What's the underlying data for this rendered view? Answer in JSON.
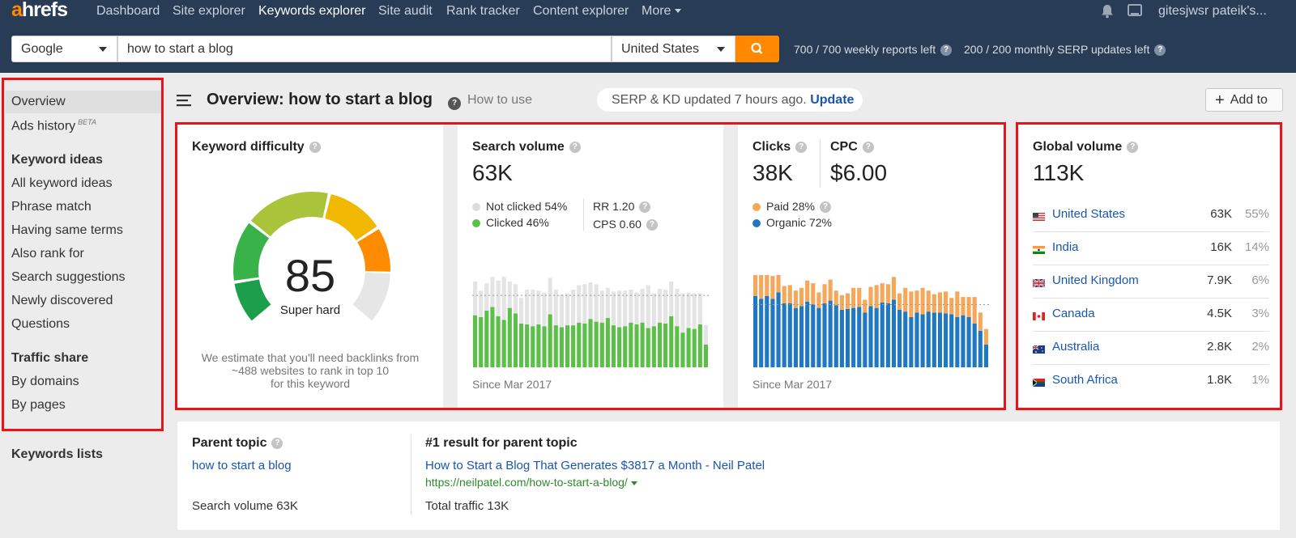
{
  "nav": {
    "logo_a": "a",
    "logo_rest": "hrefs",
    "items": [
      "Dashboard",
      "Site explorer",
      "Keywords explorer",
      "Site audit",
      "Rank tracker",
      "Content explorer",
      "More"
    ],
    "user": "gitesjwsr pateik's..."
  },
  "search": {
    "engine": "Google",
    "query": "how to start a blog",
    "country": "United States",
    "weekly_reports": "700 / 700 weekly reports left",
    "serp_updates": "200 / 200 monthly SERP updates left"
  },
  "sidebar": {
    "overview": "Overview",
    "ads_history": "Ads history",
    "beta": "BETA",
    "keyword_ideas_head": "Keyword ideas",
    "keyword_ideas": [
      "All keyword ideas",
      "Phrase match",
      "Having same terms",
      "Also rank for",
      "Search suggestions",
      "Newly discovered",
      "Questions"
    ],
    "traffic_share_head": "Traffic share",
    "traffic_share": [
      "By domains",
      "By pages"
    ],
    "keywords_lists": "Keywords lists"
  },
  "header": {
    "title": "Overview: how to start a blog",
    "how_to_use": "How to use",
    "serp_status": "SERP & KD updated 7 hours ago.",
    "update": "Update",
    "add_to": "Add to"
  },
  "kd": {
    "title": "Keyword difficulty",
    "value": "85",
    "score": 85,
    "label": "Super hard",
    "note1": "We estimate that you'll need backlinks from",
    "note2": "~488 websites to rank in top 10",
    "note3": "for this keyword"
  },
  "sv": {
    "title": "Search volume",
    "value": "63K",
    "not_clicked": "Not clicked 54%",
    "clicked": "Clicked 46%",
    "rr": "RR 1.20",
    "cps": "CPS 0.60",
    "since": "Since Mar 2017"
  },
  "clicks": {
    "title": "Clicks",
    "value": "38K",
    "cpc_title": "CPC",
    "cpc_value": "$6.00",
    "paid": "Paid 28%",
    "organic": "Organic 72%",
    "since": "Since Mar 2017"
  },
  "global": {
    "title": "Global volume",
    "value": "113K",
    "rows": [
      {
        "country": "United States",
        "volume": "63K",
        "pct": "55%"
      },
      {
        "country": "India",
        "volume": "16K",
        "pct": "14%"
      },
      {
        "country": "United Kingdom",
        "volume": "7.9K",
        "pct": "6%"
      },
      {
        "country": "Canada",
        "volume": "4.5K",
        "pct": "3%"
      },
      {
        "country": "Australia",
        "volume": "2.8K",
        "pct": "2%"
      },
      {
        "country": "South Africa",
        "volume": "1.8K",
        "pct": "1%"
      }
    ]
  },
  "parent": {
    "title": "Parent topic",
    "topic": "how to start a blog",
    "volume": "Search volume 63K",
    "result_title": "#1 result for parent topic",
    "result_link": "How to Start a Blog That Generates $3817 a Month - Neil Patel",
    "result_url": "https://neilpatel.com/how-to-start-a-blog/",
    "traffic": "Total traffic 13K"
  },
  "colors": {
    "nav_bg": "#283c55",
    "accent": "#ff8800",
    "link": "#1a55b0",
    "clicked_green": "#5cbf4a",
    "not_clicked_gray": "#e4e4e4",
    "paid_orange": "#f5a75a",
    "organic_blue": "#1f78c1"
  },
  "chart_data": [
    {
      "type": "bar",
      "stacked": true,
      "series": [
        {
          "name": "Clicked",
          "values": [
            0.57,
            0.55,
            0.62,
            0.66,
            0.56,
            0.52,
            0.65,
            0.59,
            0.48,
            0.47,
            0.45,
            0.47,
            0.45,
            0.58,
            0.46,
            0.44,
            0.46,
            0.46,
            0.49,
            0.48,
            0.53,
            0.5,
            0.49,
            0.54,
            0.46,
            0.44,
            0.45,
            0.49,
            0.47,
            0.49,
            0.43,
            0.45,
            0.49,
            0.48,
            0.56,
            0.45,
            0.38,
            0.43,
            0.42,
            0.47,
            0.25
          ]
        },
        {
          "name": "Not clicked",
          "values": [
            0.37,
            0.29,
            0.3,
            0.33,
            0.39,
            0.47,
            0.29,
            0.32,
            0.28,
            0.38,
            0.4,
            0.37,
            0.37,
            0.4,
            0.39,
            0.36,
            0.35,
            0.39,
            0.41,
            0.43,
            0.4,
            0.41,
            0.35,
            0.33,
            0.37,
            0.4,
            0.39,
            0.36,
            0.35,
            0.37,
            0.47,
            0.36,
            0.37,
            0.37,
            0.38,
            0.41,
            0.43,
            0.39,
            0.39,
            0.34,
            0.21
          ]
        }
      ]
    },
    {
      "type": "bar",
      "stacked": true,
      "series": [
        {
          "name": "Organic",
          "values": [
            0.78,
            0.75,
            0.78,
            0.75,
            0.82,
            0.7,
            0.7,
            0.65,
            0.67,
            0.72,
            0.69,
            0.65,
            0.7,
            0.73,
            0.68,
            0.63,
            0.64,
            0.65,
            0.66,
            0.6,
            0.67,
            0.65,
            0.71,
            0.7,
            0.74,
            0.63,
            0.61,
            0.55,
            0.6,
            0.58,
            0.61,
            0.6,
            0.6,
            0.59,
            0.58,
            0.55,
            0.57,
            0.55,
            0.48,
            0.4,
            0.25
          ]
        },
        {
          "name": "Paid",
          "values": [
            0.23,
            0.28,
            0.23,
            0.25,
            0.28,
            0.19,
            0.2,
            0.19,
            0.2,
            0.23,
            0.23,
            0.17,
            0.21,
            0.23,
            0.16,
            0.16,
            0.17,
            0.22,
            0.21,
            0.14,
            0.21,
            0.25,
            0.21,
            0.21,
            0.25,
            0.18,
            0.26,
            0.28,
            0.24,
            0.29,
            0.23,
            0.2,
            0.22,
            0.24,
            0.18,
            0.28,
            0.2,
            0.22,
            0.29,
            0.2,
            0.17
          ]
        }
      ]
    }
  ]
}
